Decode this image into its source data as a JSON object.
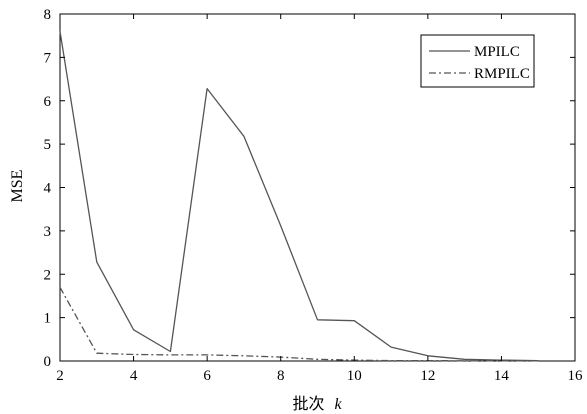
{
  "chart_data": {
    "type": "line",
    "title": "",
    "xlabel": "批次",
    "xlabel_var": "k",
    "ylabel": "MSE",
    "xlim": [
      2,
      16
    ],
    "ylim": [
      0,
      8
    ],
    "xticks": [
      2,
      4,
      6,
      8,
      10,
      12,
      14,
      16
    ],
    "yticks": [
      0,
      1,
      2,
      3,
      4,
      5,
      6,
      7,
      8
    ],
    "grid": false,
    "legend_position": "top-right",
    "series": [
      {
        "name": "MPILC",
        "style": "solid",
        "color": "#555555",
        "x": [
          2,
          3,
          4,
          5,
          6,
          7,
          8,
          9,
          10,
          11,
          12,
          13,
          14,
          15
        ],
        "y": [
          7.6,
          2.28,
          0.72,
          0.22,
          6.28,
          5.18,
          3.12,
          0.95,
          0.93,
          0.32,
          0.12,
          0.04,
          0.02,
          0.01
        ]
      },
      {
        "name": "RMPILC",
        "style": "dashdot",
        "color": "#555555",
        "x": [
          2,
          3,
          4,
          5,
          6,
          7,
          8,
          9,
          10,
          11,
          12,
          13,
          14,
          15
        ],
        "y": [
          1.7,
          0.18,
          0.15,
          0.14,
          0.14,
          0.12,
          0.09,
          0.04,
          0.02,
          0.01,
          0.01,
          0.005,
          0.005,
          0.002
        ]
      }
    ]
  }
}
